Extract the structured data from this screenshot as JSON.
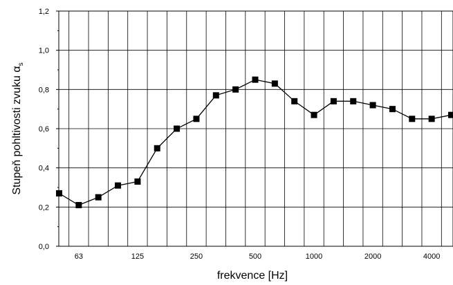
{
  "chart_data": {
    "type": "line",
    "xlabel": "frekvence [Hz]",
    "ylabel": "Stupeň pohltivosti zvuku α",
    "ylabel_subscript": "s",
    "ylim": [
      0,
      1.2
    ],
    "yticks": [
      "0,0",
      "0,2",
      "0,4",
      "0,6",
      "0,8",
      "1,0",
      "1,2"
    ],
    "xtick_labels": [
      "63",
      "125",
      "250",
      "500",
      "1000",
      "2000",
      "4000"
    ],
    "grid": true,
    "legend": "none",
    "marker": "square",
    "line_color": "#000000",
    "series": [
      {
        "x": [
          50,
          63,
          80,
          100,
          125,
          160,
          200,
          250,
          315,
          400,
          500,
          630,
          800,
          1000,
          1250,
          1600,
          2000,
          2500,
          3150,
          4000,
          5000
        ],
        "values": [
          0.27,
          0.21,
          0.25,
          0.31,
          0.33,
          0.5,
          0.6,
          0.65,
          0.77,
          0.8,
          0.85,
          0.83,
          0.74,
          0.67,
          0.74,
          0.74,
          0.72,
          0.7,
          0.65,
          0.65,
          0.67
        ]
      }
    ]
  }
}
